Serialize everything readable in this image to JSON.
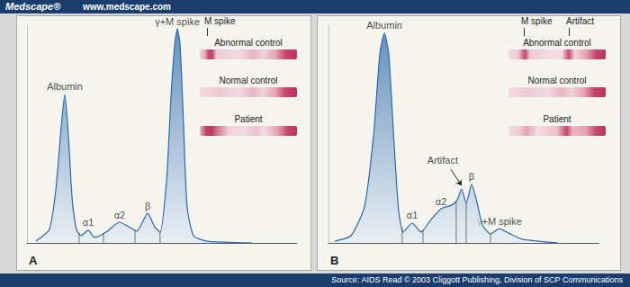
{
  "header": {
    "brand": "Medscape®",
    "url": "www.medscape.com"
  },
  "source": "Source: AIDS Read © 2003 Cliggott Publishing, Division of SCP Communications",
  "chart_data": [
    {
      "type": "area",
      "title": "A",
      "color": "#2b68a8",
      "x": [
        3.3,
        8.3,
        10.7,
        12.7,
        14,
        15.3,
        16.7,
        18.3,
        20,
        22.7,
        25,
        29.3,
        34.3,
        38.3,
        40.7,
        44.7,
        47.3,
        49.3,
        51.7,
        53.3,
        54.7,
        55.7,
        56.7,
        58,
        59.3,
        61.7,
        66.7,
        83.3
      ],
      "values": [
        0.8,
        6.2,
        24.8,
        53.7,
        68.2,
        49.6,
        20.7,
        6.2,
        3.3,
        5.8,
        2.5,
        5.0,
        9.5,
        7.0,
        5.4,
        13.6,
        7.4,
        5.0,
        28.9,
        66.1,
        90.9,
        98.3,
        90.9,
        53.7,
        16.5,
        3.3,
        0.8,
        0
      ],
      "xlim": [
        0,
        100
      ],
      "ylim": [
        0,
        100
      ],
      "tick_labels": false,
      "grid": false,
      "dividers": [
        19.3,
        28.3,
        40,
        49.3
      ],
      "peaks": [
        {
          "label": "Albumin",
          "x": 14
        },
        {
          "label": "α1",
          "x": 22.7
        },
        {
          "label": "α2",
          "x": 34.3
        },
        {
          "label": "β",
          "x": 44.7
        },
        {
          "label": "γ+M spike",
          "x": 55.7
        }
      ],
      "gel": {
        "markers": [
          "M spike"
        ],
        "lanes": [
          "Abnormal control",
          "Normal control",
          "Patient"
        ]
      }
    },
    {
      "type": "area",
      "title": "B",
      "color": "#2b68a8",
      "x": [
        2.3,
        8.3,
        13.3,
        16.7,
        19,
        20.7,
        22.3,
        24.3,
        26,
        27.7,
        31,
        34.3,
        37.7,
        41.7,
        45.7,
        47.7,
        49.3,
        51,
        53,
        55,
        57,
        60,
        63.3,
        66.7,
        71.7,
        85
      ],
      "values": [
        0.8,
        3.3,
        16.5,
        49.6,
        86.8,
        96.3,
        86.8,
        45.5,
        14.5,
        5.0,
        9.1,
        5.0,
        10.3,
        15.7,
        17.4,
        19.8,
        24.8,
        18.2,
        26.9,
        18.6,
        8.3,
        4.1,
        6.6,
        4.5,
        1.7,
        0
      ],
      "xlim": [
        0,
        100
      ],
      "ylim": [
        0,
        100
      ],
      "tick_labels": false,
      "grid": false,
      "dividers": [
        27.3,
        35,
        47.3,
        51,
        60
      ],
      "peaks": [
        {
          "label": "Albumin",
          "x": 20.7
        },
        {
          "label": "α1",
          "x": 31
        },
        {
          "label": "α2",
          "x": 41.7
        },
        {
          "label": "β",
          "x": 53
        },
        {
          "label": "γ+M spike",
          "x": 63.3
        }
      ],
      "annotations": [
        {
          "text": "Artifact",
          "x": 49.3
        }
      ],
      "gel": {
        "markers": [
          "M spike",
          "Artifact"
        ],
        "lanes": [
          "Abnormal control",
          "Normal control",
          "Patient"
        ]
      }
    }
  ]
}
